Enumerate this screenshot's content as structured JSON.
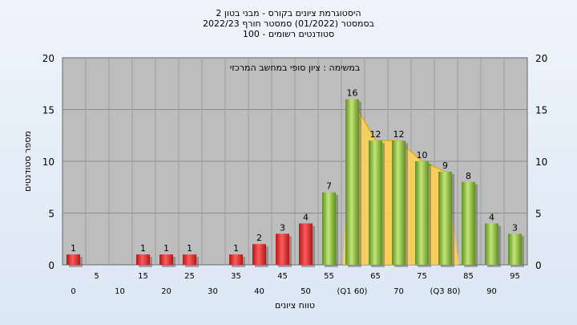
{
  "chart_data": {
    "type": "bar",
    "title_lines": [
      "היסטוגרמת ציונים בקורס - מבני בטון 2",
      "בסמסטר  (01/2022)  סמסטר חורף  2022/23",
      "סטודנטים רשומים - 100"
    ],
    "annotation": "במשימה : ציון סופי במחשב המרכזי",
    "xlabel": "טווח ציונים",
    "ylabel": "מספר סטודנטים",
    "ylim": [
      0,
      20
    ],
    "yticks": [
      0,
      5,
      10,
      15,
      20
    ],
    "grid": true,
    "categories": [
      "0",
      "5",
      "10",
      "15",
      "20",
      "25",
      "30",
      "35",
      "40",
      "45",
      "50",
      "55",
      "(Q1 60)",
      "65",
      "70",
      "75",
      "(Q3 80)",
      "85",
      "90",
      "95"
    ],
    "values": [
      1,
      null,
      null,
      1,
      1,
      1,
      null,
      1,
      2,
      3,
      4,
      7,
      16,
      12,
      12,
      10,
      9,
      8,
      4,
      3
    ],
    "data_labels": [
      "1",
      "",
      "",
      "1",
      "1",
      "1",
      "",
      "1",
      "2",
      "3",
      "4",
      "7",
      "16",
      "12",
      "12",
      "10",
      "9",
      "8",
      "4",
      "3"
    ],
    "quartile_band": {
      "from": "(Q1 60)",
      "to": "(Q3 80)",
      "values": [
        16,
        12,
        12,
        10,
        9
      ]
    },
    "colors": {
      "fail": "#e03030",
      "pass": "#8ec63f",
      "band": "#ffd34d",
      "plot_bg": "#bdbdbd"
    }
  }
}
